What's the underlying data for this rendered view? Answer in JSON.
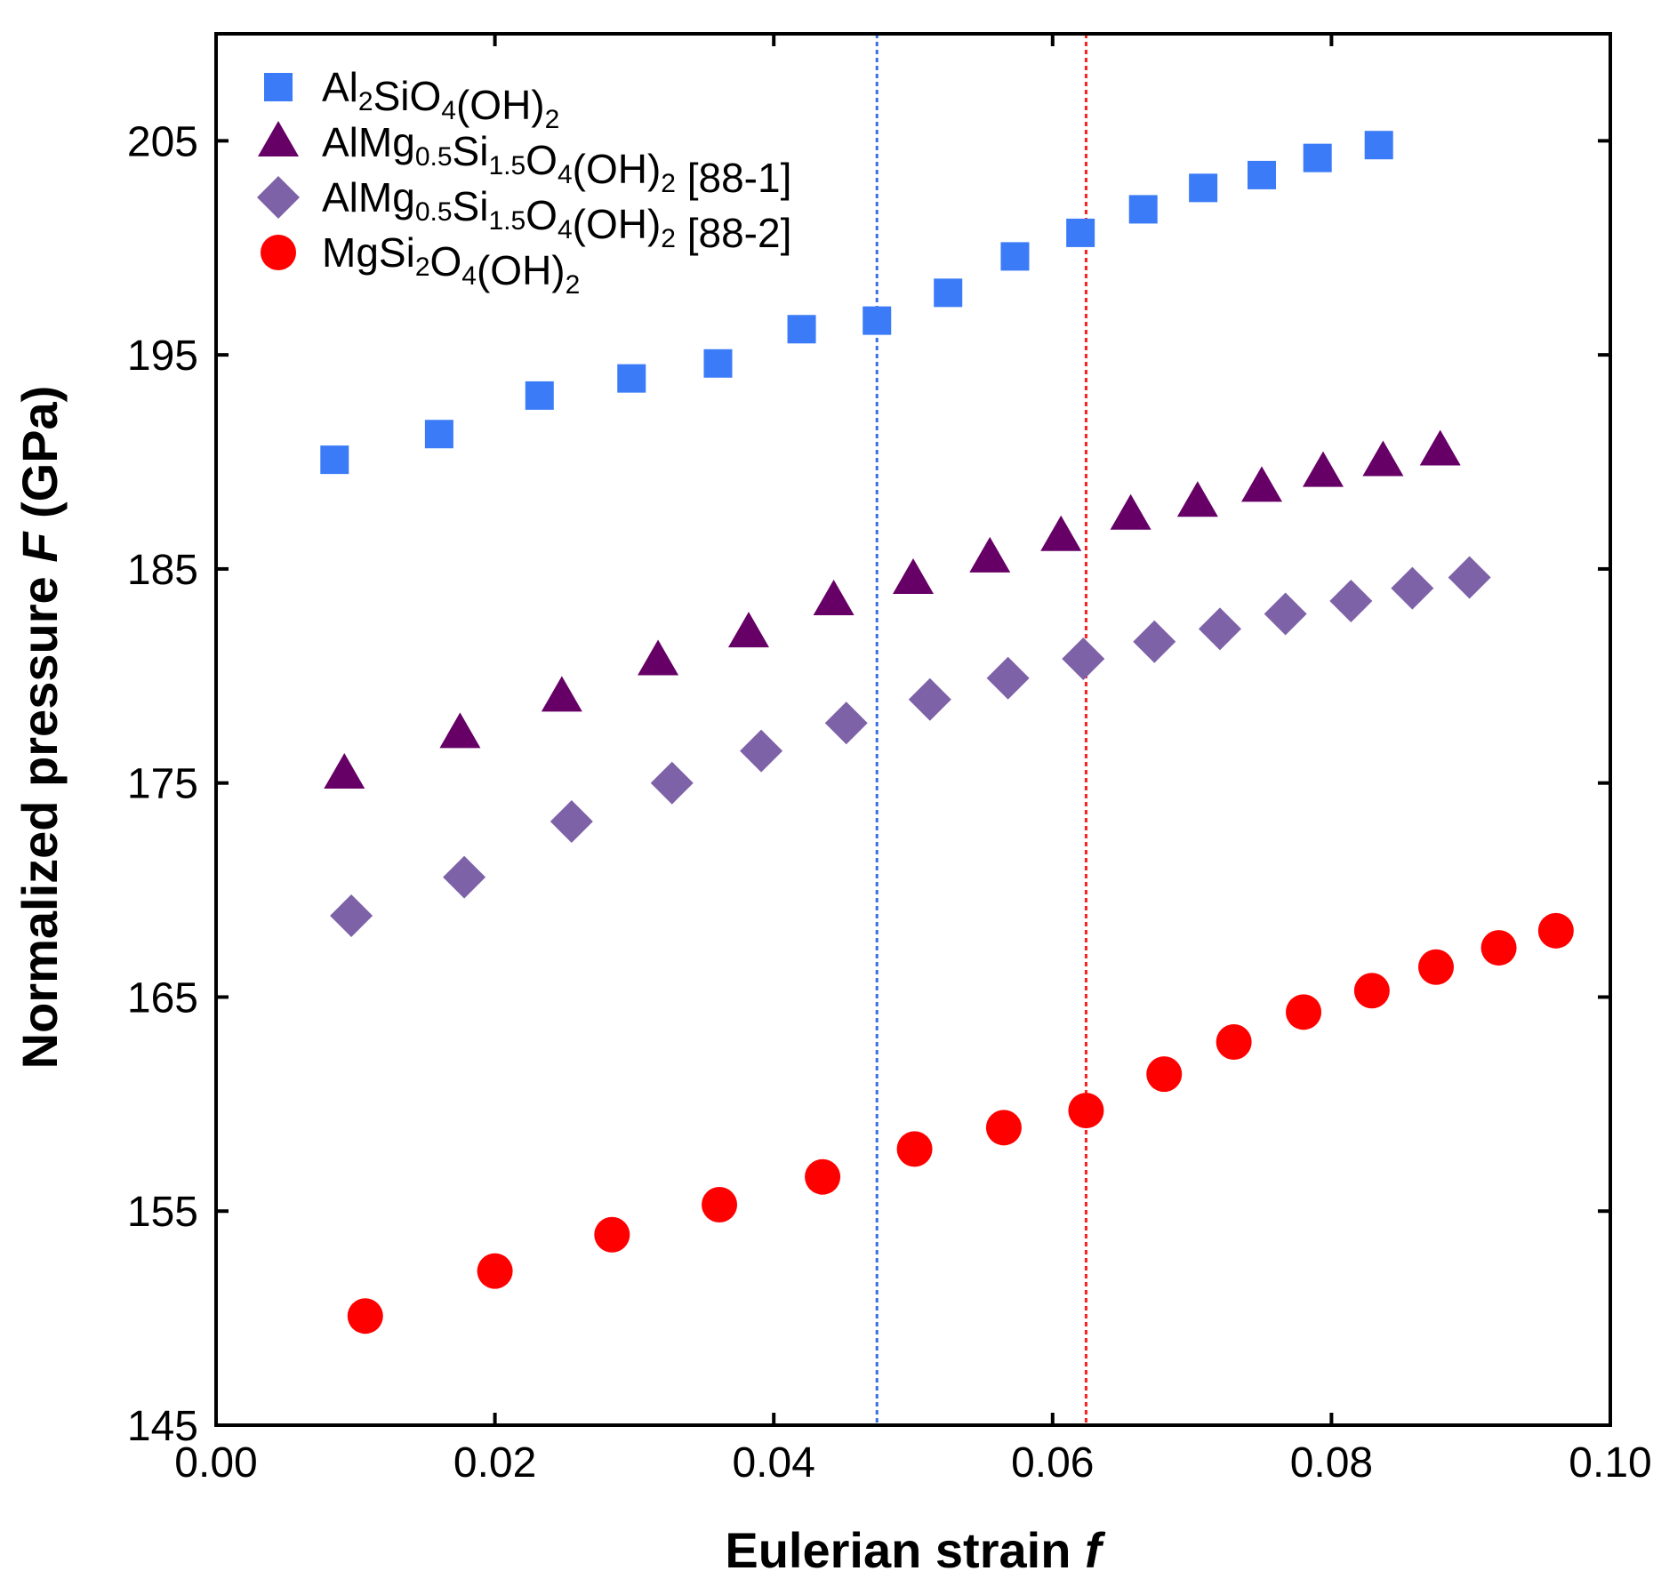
{
  "chart_data": {
    "type": "scatter",
    "xlabel": "Eulerian strain",
    "xlabel_symbol": "f",
    "ylabel": "Normalized pressure",
    "ylabel_symbol": "F",
    "ylabel_unit": "(GPa)",
    "xlim": [
      0.0,
      0.1
    ],
    "ylim": [
      145,
      210
    ],
    "xticks": [
      "0.00",
      "0.02",
      "0.04",
      "0.06",
      "0.08",
      "0.10"
    ],
    "xtick_values": [
      0.0,
      0.02,
      0.04,
      0.06,
      0.08,
      0.1
    ],
    "yticks": [
      "145",
      "155",
      "165",
      "175",
      "185",
      "195",
      "205"
    ],
    "ytick_values": [
      145,
      155,
      165,
      175,
      185,
      195,
      205
    ],
    "grid": false,
    "legend_position": "top-left",
    "vlines": [
      {
        "x": 0.0474,
        "color": "#3a6fe0",
        "style": "dotted"
      },
      {
        "x": 0.0624,
        "color": "#ff2020",
        "style": "dotted"
      }
    ],
    "series": [
      {
        "name": "Al2SiO4(OH)2",
        "label_parts": [
          {
            "t": "Al"
          },
          {
            "t": "2",
            "sub": true
          },
          {
            "t": "SiO"
          },
          {
            "t": "4",
            "sub": true
          },
          {
            "t": "(OH)"
          },
          {
            "t": "2",
            "sub": true
          }
        ],
        "marker": "square",
        "color": "#3b7bf7",
        "x": [
          0.0085,
          0.016,
          0.0232,
          0.0298,
          0.036,
          0.042,
          0.0474,
          0.0525,
          0.0573,
          0.062,
          0.0665,
          0.0708,
          0.075,
          0.079,
          0.0834
        ],
        "y": [
          190.1,
          191.3,
          193.1,
          193.9,
          194.6,
          196.2,
          196.6,
          197.9,
          199.6,
          200.7,
          201.8,
          202.8,
          203.4,
          204.2,
          204.8
        ]
      },
      {
        "name": "AlMg0.5Si1.5O4(OH)2 [88-1]",
        "label_parts": [
          {
            "t": "AlMg"
          },
          {
            "t": "0.5",
            "sub": true
          },
          {
            "t": "Si"
          },
          {
            "t": "1.5",
            "sub": true
          },
          {
            "t": "O"
          },
          {
            "t": "4",
            "sub": true
          },
          {
            "t": "(OH)"
          },
          {
            "t": "2",
            "sub": true
          },
          {
            "t": " [88-1]"
          }
        ],
        "marker": "triangle",
        "color": "#660066",
        "x": [
          0.0092,
          0.0175,
          0.0248,
          0.0317,
          0.0382,
          0.0443,
          0.05,
          0.0555,
          0.0606,
          0.0656,
          0.0704,
          0.075,
          0.0794,
          0.0837,
          0.0878
        ],
        "y": [
          175.4,
          177.3,
          179.0,
          180.7,
          182.0,
          183.5,
          184.5,
          185.5,
          186.5,
          187.5,
          188.1,
          188.8,
          189.5,
          190.0,
          190.5
        ]
      },
      {
        "name": "AlMg0.5Si1.5O4(OH)2 [88-2]",
        "label_parts": [
          {
            "t": "AlMg"
          },
          {
            "t": "0.5",
            "sub": true
          },
          {
            "t": "Si"
          },
          {
            "t": "1.5",
            "sub": true
          },
          {
            "t": "O"
          },
          {
            "t": "4",
            "sub": true
          },
          {
            "t": "(OH)"
          },
          {
            "t": "2",
            "sub": true
          },
          {
            "t": " [88-2]"
          }
        ],
        "marker": "diamond",
        "color": "#7e62a8",
        "x": [
          0.0097,
          0.0178,
          0.0255,
          0.0327,
          0.0391,
          0.0452,
          0.0512,
          0.0568,
          0.0622,
          0.0673,
          0.072,
          0.0767,
          0.0814,
          0.0858,
          0.0899
        ],
        "y": [
          168.8,
          170.6,
          173.2,
          175.0,
          176.5,
          177.8,
          178.9,
          179.9,
          180.8,
          181.6,
          182.2,
          182.9,
          183.5,
          184.1,
          184.6
        ]
      },
      {
        "name": "MgSi2O4(OH)2",
        "label_parts": [
          {
            "t": "MgSi"
          },
          {
            "t": "2",
            "sub": true
          },
          {
            "t": "O"
          },
          {
            "t": "4",
            "sub": true
          },
          {
            "t": "(OH)"
          },
          {
            "t": "2",
            "sub": true
          }
        ],
        "marker": "circle",
        "color": "#ff0000",
        "x": [
          0.0107,
          0.02,
          0.0284,
          0.0361,
          0.0435,
          0.0501,
          0.0565,
          0.0624,
          0.068,
          0.073,
          0.078,
          0.0829,
          0.0875,
          0.092,
          0.0961
        ],
        "y": [
          150.1,
          152.2,
          153.9,
          155.3,
          156.6,
          157.9,
          158.9,
          159.7,
          161.4,
          162.9,
          164.3,
          165.3,
          166.4,
          167.3,
          168.1
        ]
      }
    ]
  }
}
